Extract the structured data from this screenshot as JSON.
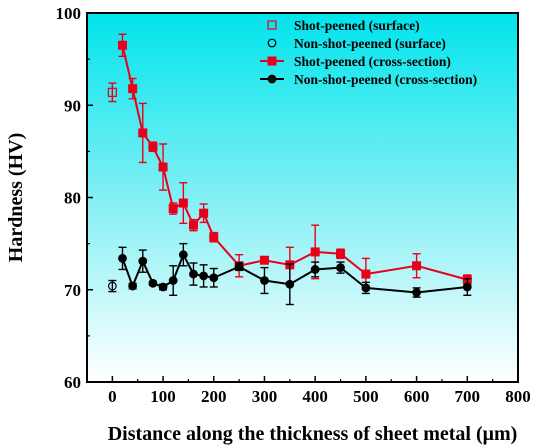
{
  "chart_data": {
    "type": "line",
    "title": "",
    "xlabel": "Distance along the thickness of sheet metal (μm)",
    "ylabel": "Hardness (HV)",
    "xlim": [
      -50,
      800
    ],
    "ylim": [
      60,
      100
    ],
    "xticks": [
      0,
      100,
      200,
      300,
      400,
      500,
      600,
      700,
      800
    ],
    "yticks": [
      60,
      70,
      80,
      90,
      100
    ],
    "x_tick_labels": [
      "0",
      "100",
      "200",
      "300",
      "400",
      "500",
      "600",
      "700",
      "800"
    ],
    "y_tick_labels": [
      "60",
      "70",
      "80",
      "90",
      "100"
    ],
    "background": "gradient-cyan-top-to-white-bottom",
    "legend_position": "top-right",
    "series": [
      {
        "name": "Shot-peened (surface)",
        "style": "open-square",
        "color": "#e8001b",
        "x": [
          0
        ],
        "y": [
          91.4
        ],
        "err": [
          1.0
        ]
      },
      {
        "name": "Non-shot-peened (surface)",
        "style": "open-circle",
        "color": "#000000",
        "x": [
          0
        ],
        "y": [
          70.4
        ],
        "err": [
          0.6
        ]
      },
      {
        "name": "Shot-peened (cross-section)",
        "style": "filled-square-line",
        "color": "#e8001b",
        "x": [
          20,
          40,
          60,
          80,
          100,
          120,
          140,
          160,
          180,
          200,
          250,
          300,
          350,
          400,
          450,
          500,
          600,
          700
        ],
        "y": [
          96.5,
          91.8,
          87.0,
          85.5,
          83.3,
          78.8,
          79.4,
          77.0,
          78.3,
          75.7,
          72.6,
          73.2,
          72.7,
          74.1,
          73.9,
          71.7,
          72.6,
          71.1
        ],
        "err": [
          1.2,
          1.1,
          3.2,
          0.5,
          2.5,
          0.6,
          2.2,
          0.6,
          1.0,
          0.5,
          1.2,
          0.3,
          1.9,
          2.9,
          0.5,
          1.7,
          1.3,
          0.5
        ]
      },
      {
        "name": "Non-shot-peened (cross-section)",
        "style": "filled-circle-line",
        "color": "#000000",
        "x": [
          20,
          40,
          60,
          80,
          100,
          120,
          140,
          160,
          180,
          200,
          250,
          300,
          350,
          400,
          450,
          500,
          600,
          700
        ],
        "y": [
          73.4,
          70.4,
          73.1,
          70.7,
          70.3,
          71.0,
          73.8,
          71.7,
          71.5,
          71.3,
          72.5,
          71.0,
          70.6,
          72.2,
          72.4,
          70.2,
          69.7,
          70.3
        ],
        "err": [
          1.2,
          0.3,
          1.2,
          0.2,
          0.3,
          1.6,
          1.2,
          1.2,
          1.2,
          1.0,
          0.4,
          1.4,
          2.2,
          0.8,
          0.6,
          0.6,
          0.5,
          0.9
        ]
      }
    ]
  }
}
